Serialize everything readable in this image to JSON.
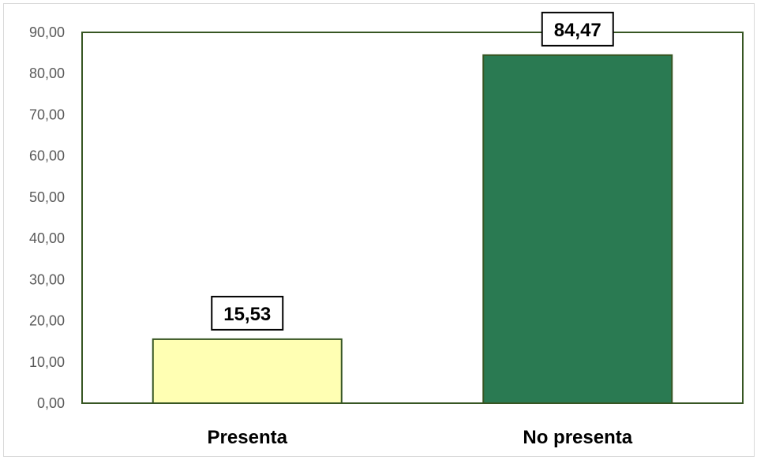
{
  "chart_data": {
    "type": "bar",
    "categories": [
      "Presenta",
      "No presenta"
    ],
    "values": [
      15.53,
      84.47
    ],
    "data_labels": [
      "15,53",
      "84,47"
    ],
    "title": "",
    "xlabel": "",
    "ylabel": "",
    "ylim": [
      0,
      90
    ],
    "yticks": [
      0,
      10,
      20,
      30,
      40,
      50,
      60,
      70,
      80,
      90
    ],
    "ytick_labels": [
      "0,00",
      "10,00",
      "20,00",
      "30,00",
      "40,00",
      "50,00",
      "60,00",
      "70,00",
      "80,00",
      "90,00"
    ],
    "grid": false,
    "legend": "none",
    "colors": {
      "bars": [
        "#ffffb3",
        "#2a7a52"
      ],
      "bar_outline": "#375623",
      "plot_border": "#375623"
    }
  }
}
